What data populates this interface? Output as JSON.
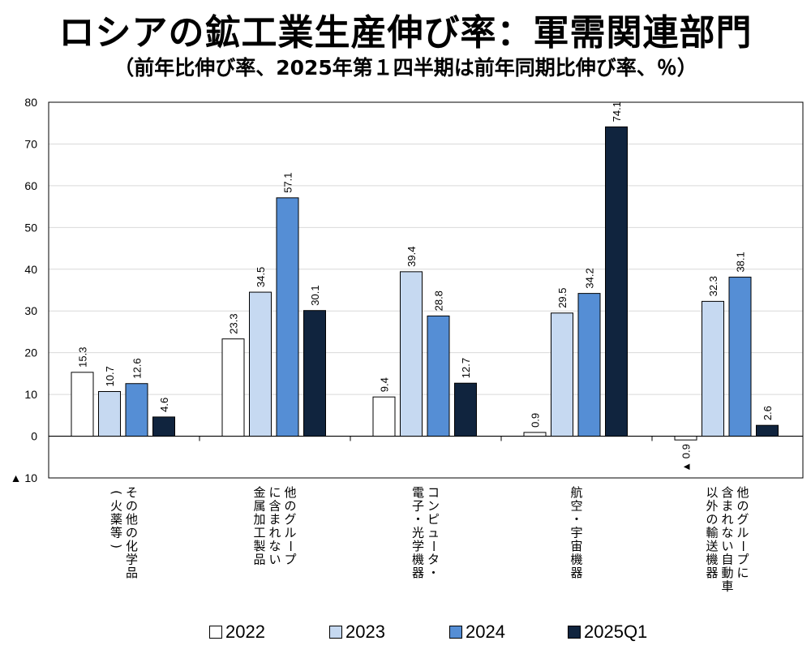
{
  "title": "ロシアの鉱工業生産伸び率：軍需関連部門",
  "subtitle": "（前年比伸び率、2025年第１四半期は前年同期比伸び率、％）",
  "colors": {
    "2022": "#ffffff",
    "2023": "#c6d9f1",
    "2024": "#558ed5",
    "2025Q1": "#10243e"
  },
  "chart_data": {
    "type": "bar",
    "title": "ロシアの鉱工業生産伸び率：軍需関連部門",
    "subtitle": "（前年比伸び率、2025年第１四半期は前年同期比伸び率、％）",
    "ylim": [
      -10,
      80
    ],
    "yticks": [
      80,
      70,
      60,
      50,
      40,
      30,
      20,
      10,
      0,
      -10
    ],
    "ytick_labels": [
      "80",
      "70",
      "60",
      "50",
      "40",
      "30",
      "20",
      "10",
      "0",
      "▲ 10"
    ],
    "grid": true,
    "legend_position": "bottom",
    "categories": [
      [
        "その他の化学品",
        "（火薬等）"
      ],
      [
        "他のグループ",
        "に含まれない",
        "金属加工製品"
      ],
      [
        "コンピュータ・",
        "電子・光学機器"
      ],
      [
        "航空・宇宙機器"
      ],
      [
        "他のグループに",
        "含まれない自動車",
        "以外の輸送機器"
      ]
    ],
    "series": [
      {
        "name": "2022",
        "values": [
          15.3,
          23.3,
          9.4,
          0.9,
          -0.9
        ],
        "labels": [
          "15.3",
          "23.3",
          "9.4",
          "0.9",
          "▲ 0.9"
        ]
      },
      {
        "name": "2023",
        "values": [
          10.7,
          34.5,
          39.4,
          29.5,
          32.3
        ],
        "labels": [
          "10.7",
          "34.5",
          "39.4",
          "29.5",
          "32.3"
        ]
      },
      {
        "name": "2024",
        "values": [
          12.6,
          57.1,
          28.8,
          34.2,
          38.1
        ],
        "labels": [
          "12.6",
          "57.1",
          "28.8",
          "34.2",
          "38.1"
        ]
      },
      {
        "name": "2025Q1",
        "values": [
          4.6,
          30.1,
          12.7,
          74.1,
          2.6
        ],
        "labels": [
          "4.6",
          "30.1",
          "12.7",
          "74.1",
          "2.6"
        ]
      }
    ]
  }
}
